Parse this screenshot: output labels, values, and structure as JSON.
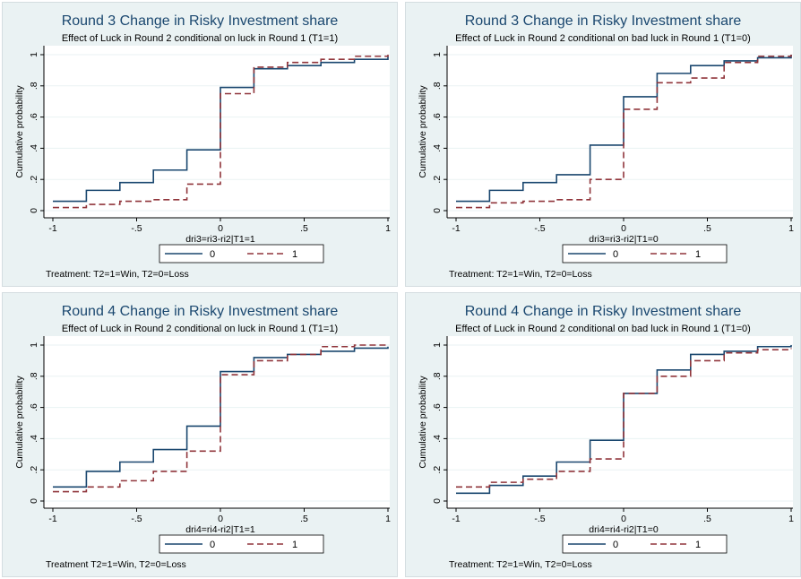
{
  "colors": {
    "background": "#eaf2f3",
    "plot_area": "#ffffff",
    "title": "#1a476f",
    "series_0": "#1a476f",
    "series_1": "#90353b"
  },
  "chart_data": [
    {
      "type": "line",
      "title": "Round 3 Change in Risky Investment share",
      "subtitle": "Effect of Luck in Round 2 conditional on luck in Round 1 (T1=1)",
      "xlabel": "dri3=ri3-ri2|T1=1",
      "ylabel": "Cumulative probability",
      "note": "Treatment: T2=1=Win, T2=0=Loss",
      "xlim": [
        -1,
        1
      ],
      "ylim": [
        0,
        1
      ],
      "x_ticks": [
        -1,
        -0.5,
        0,
        0.5,
        1
      ],
      "x_tick_labels": [
        "-1",
        "-.5",
        "0",
        ".5",
        "1"
      ],
      "y_ticks": [
        0,
        0.2,
        0.4,
        0.6,
        0.8,
        1
      ],
      "y_tick_labels": [
        "0",
        ".2",
        ".4",
        ".6",
        ".8",
        "1"
      ],
      "legend_position": "bottom",
      "series": [
        {
          "name": "0",
          "style": "solid",
          "x": [
            -1,
            -0.8,
            -0.6,
            -0.4,
            -0.2,
            0,
            0.2,
            0.4,
            0.6,
            0.8,
            1
          ],
          "y": [
            0.06,
            0.13,
            0.18,
            0.26,
            0.39,
            0.79,
            0.91,
            0.93,
            0.95,
            0.97,
            0.99
          ]
        },
        {
          "name": "1",
          "style": "dash",
          "x": [
            -1,
            -0.8,
            -0.6,
            -0.4,
            -0.2,
            0,
            0.2,
            0.4,
            0.6,
            0.8,
            1
          ],
          "y": [
            0.02,
            0.04,
            0.06,
            0.07,
            0.17,
            0.75,
            0.92,
            0.95,
            0.97,
            0.99,
            1.0
          ]
        }
      ]
    },
    {
      "type": "line",
      "title": "Round 3 Change in Risky Investment share",
      "subtitle": "Effect of Luck in Round 2 conditional on bad luck in Round 1 (T1=0)",
      "xlabel": "dri3=ri3-ri2|T1=0",
      "ylabel": "Cumulative probability",
      "note": "Treatment: T2=1=Win, T2=0=Loss",
      "xlim": [
        -1,
        1
      ],
      "ylim": [
        0,
        1
      ],
      "x_ticks": [
        -1,
        -0.5,
        0,
        0.5,
        1
      ],
      "x_tick_labels": [
        "-1",
        "-.5",
        "0",
        ".5",
        "1"
      ],
      "y_ticks": [
        0,
        0.2,
        0.4,
        0.6,
        0.8,
        1
      ],
      "y_tick_labels": [
        "0",
        ".2",
        ".4",
        ".6",
        ".8",
        "1"
      ],
      "legend_position": "bottom",
      "series": [
        {
          "name": "0",
          "style": "solid",
          "x": [
            -1,
            -0.8,
            -0.6,
            -0.4,
            -0.2,
            0,
            0.2,
            0.4,
            0.6,
            0.8,
            1
          ],
          "y": [
            0.06,
            0.13,
            0.18,
            0.23,
            0.42,
            0.73,
            0.88,
            0.93,
            0.96,
            0.98,
            1.0
          ]
        },
        {
          "name": "1",
          "style": "dash",
          "x": [
            -1,
            -0.8,
            -0.6,
            -0.4,
            -0.2,
            0,
            0.2,
            0.4,
            0.6,
            0.8,
            1
          ],
          "y": [
            0.02,
            0.05,
            0.06,
            0.07,
            0.2,
            0.65,
            0.82,
            0.85,
            0.95,
            0.99,
            1.0
          ]
        }
      ]
    },
    {
      "type": "line",
      "title": "Round 4 Change in Risky Investment share",
      "subtitle": "Effect of Luck in Round 2 conditional on luck in Round 1 (T1=1)",
      "xlabel": "dri4=ri4-ri2|T1=1",
      "ylabel": "Cumulative probability",
      "note": "Treatment T2=1=Win, T2=0=Loss",
      "xlim": [
        -1,
        1
      ],
      "ylim": [
        0,
        1
      ],
      "x_ticks": [
        -1,
        -0.5,
        0,
        0.5,
        1
      ],
      "x_tick_labels": [
        "-1",
        "-.5",
        "0",
        ".5",
        "1"
      ],
      "y_ticks": [
        0,
        0.2,
        0.4,
        0.6,
        0.8,
        1
      ],
      "y_tick_labels": [
        "0",
        ".2",
        ".4",
        ".6",
        ".8",
        "1"
      ],
      "legend_position": "bottom",
      "series": [
        {
          "name": "0",
          "style": "solid",
          "x": [
            -1,
            -0.8,
            -0.6,
            -0.4,
            -0.2,
            0,
            0.2,
            0.4,
            0.6,
            0.8,
            1
          ],
          "y": [
            0.09,
            0.19,
            0.25,
            0.33,
            0.48,
            0.83,
            0.92,
            0.94,
            0.96,
            0.98,
            0.99
          ]
        },
        {
          "name": "1",
          "style": "dash",
          "x": [
            -1,
            -0.8,
            -0.6,
            -0.4,
            -0.2,
            0,
            0.2,
            0.4,
            0.6,
            0.8,
            1
          ],
          "y": [
            0.06,
            0.09,
            0.13,
            0.19,
            0.32,
            0.81,
            0.9,
            0.94,
            0.99,
            1.0,
            1.0
          ]
        }
      ]
    },
    {
      "type": "line",
      "title": "Round 4 Change in Risky Investment share",
      "subtitle": "Effect of Luck in Round 2 conditional on bad luck in Round 1 (T1=0)",
      "xlabel": "dri4=ri4-ri2|T1=0",
      "ylabel": "Cumulative probability",
      "note": "Treatment: T2=1=Win, T2=0=Loss",
      "xlim": [
        -1,
        1
      ],
      "ylim": [
        0,
        1
      ],
      "x_ticks": [
        -1,
        -0.5,
        0,
        0.5,
        1
      ],
      "x_tick_labels": [
        "-1",
        "-.5",
        "0",
        ".5",
        "1"
      ],
      "y_ticks": [
        0,
        0.2,
        0.4,
        0.6,
        0.8,
        1
      ],
      "y_tick_labels": [
        "0",
        ".2",
        ".4",
        ".6",
        ".8",
        "1"
      ],
      "legend_position": "bottom",
      "series": [
        {
          "name": "0",
          "style": "solid",
          "x": [
            -1,
            -0.8,
            -0.6,
            -0.4,
            -0.2,
            0,
            0.2,
            0.4,
            0.6,
            0.8,
            1
          ],
          "y": [
            0.05,
            0.1,
            0.16,
            0.25,
            0.39,
            0.69,
            0.84,
            0.94,
            0.96,
            0.99,
            1.0
          ]
        },
        {
          "name": "1",
          "style": "dash",
          "x": [
            -1,
            -0.8,
            -0.6,
            -0.4,
            -0.2,
            0,
            0.2,
            0.4,
            0.6,
            0.8,
            1
          ],
          "y": [
            0.09,
            0.12,
            0.14,
            0.19,
            0.27,
            0.69,
            0.8,
            0.9,
            0.95,
            0.97,
            0.98
          ]
        }
      ]
    }
  ]
}
